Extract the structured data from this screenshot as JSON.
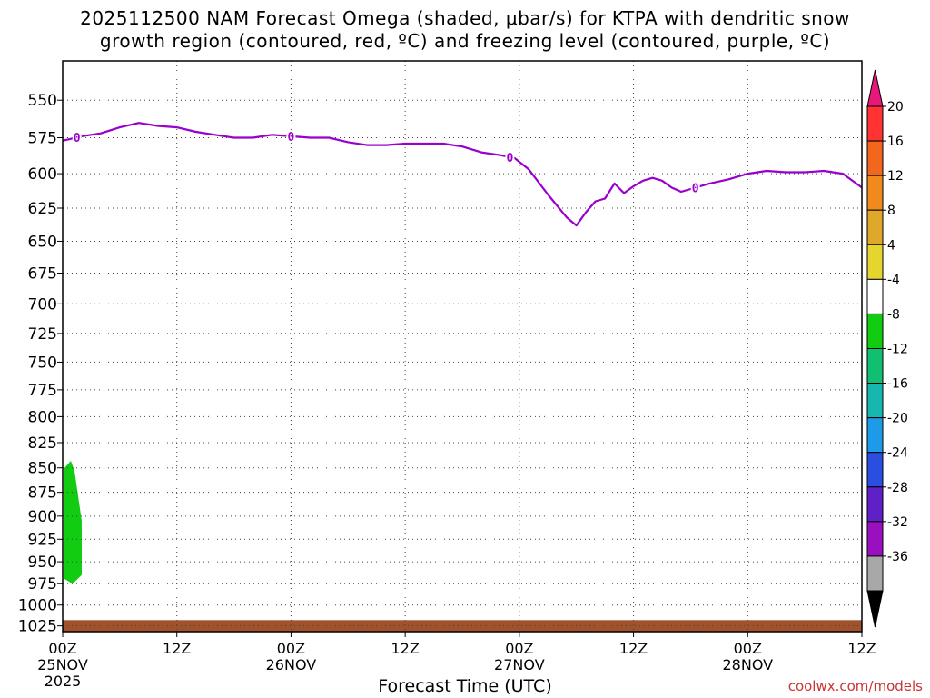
{
  "title": {
    "line1": "2025112500 NAM Forecast Omega (shaded, μbar/s) for KTPA with dendritic snow",
    "line2": "growth region (contoured, red, ºC) and freezing level (contoured, purple, ºC)"
  },
  "credit": "coolwx.com/models",
  "chart_data": {
    "type": "heatmap",
    "xlabel": "Forecast Time (UTC)",
    "x_ticks": [
      {
        "hour": 0,
        "label": "00Z",
        "sub": "25NOV",
        "sub2": "2025"
      },
      {
        "hour": 12,
        "label": "12Z"
      },
      {
        "hour": 24,
        "label": "00Z",
        "sub": "26NOV"
      },
      {
        "hour": 36,
        "label": "12Z"
      },
      {
        "hour": 48,
        "label": "00Z",
        "sub": "27NOV"
      },
      {
        "hour": 60,
        "label": "12Z"
      },
      {
        "hour": 72,
        "label": "00Z",
        "sub": "28NOV"
      },
      {
        "hour": 84,
        "label": "12Z"
      }
    ],
    "xlim": [
      0,
      84
    ],
    "ylabel": "",
    "y_ticks": [
      550,
      575,
      600,
      625,
      650,
      675,
      700,
      725,
      750,
      775,
      800,
      825,
      850,
      875,
      900,
      925,
      950,
      975,
      1000,
      1025
    ],
    "ylim": [
      1032,
      525
    ],
    "y_scale": "log-pressure",
    "grid": true,
    "colorbar": {
      "labels": [
        "20",
        "16",
        "12",
        "8",
        "4",
        "-4",
        "-8",
        "-12",
        "-16",
        "-20",
        "-24",
        "-28",
        "-32",
        "-36"
      ],
      "colors": [
        "#e8177a",
        "#ff3333",
        "#f2661e",
        "#f08a1c",
        "#e0a82b",
        "#e6d52e",
        "#ffffff",
        "#11cc11",
        "#10c070",
        "#17b7b0",
        "#1e9be8",
        "#2a4fe0",
        "#6020c8",
        "#9a10c0",
        "#a8a8a8",
        "#000000"
      ]
    },
    "freezing_level": {
      "color": "#9900cc",
      "contour_label": "0",
      "label_hours": [
        1.5,
        24,
        47,
        66.5
      ],
      "points": [
        [
          0,
          577
        ],
        [
          2,
          574
        ],
        [
          4,
          572
        ],
        [
          6,
          568
        ],
        [
          8,
          565
        ],
        [
          10,
          567
        ],
        [
          12,
          568
        ],
        [
          14,
          571
        ],
        [
          16,
          573
        ],
        [
          18,
          575
        ],
        [
          20,
          575
        ],
        [
          22,
          573
        ],
        [
          24,
          574
        ],
        [
          26,
          575
        ],
        [
          28,
          575
        ],
        [
          30,
          578
        ],
        [
          32,
          580
        ],
        [
          34,
          580
        ],
        [
          36,
          579
        ],
        [
          38,
          579
        ],
        [
          40,
          579
        ],
        [
          42,
          581
        ],
        [
          44,
          585
        ],
        [
          46,
          587
        ],
        [
          47.5,
          589
        ],
        [
          49,
          597
        ],
        [
          51,
          615
        ],
        [
          53,
          632
        ],
        [
          54,
          638
        ],
        [
          55,
          628
        ],
        [
          56,
          620
        ],
        [
          57,
          618
        ],
        [
          58,
          607
        ],
        [
          59,
          614
        ],
        [
          60,
          609
        ],
        [
          61,
          605
        ],
        [
          62,
          603
        ],
        [
          63,
          605
        ],
        [
          64,
          610
        ],
        [
          65,
          613
        ],
        [
          66,
          611
        ],
        [
          67,
          609
        ],
        [
          68,
          607
        ],
        [
          70,
          604
        ],
        [
          72,
          600
        ],
        [
          74,
          598
        ],
        [
          76,
          599
        ],
        [
          78,
          599
        ],
        [
          80,
          598
        ],
        [
          82,
          600
        ],
        [
          84,
          610
        ]
      ]
    },
    "shaded_regions": [
      {
        "category": "-4 to -8",
        "color": "#11cc11",
        "x_range": [
          0,
          2
        ],
        "pressure_range": [
          843,
          975
        ]
      }
    ],
    "ground_color": "#a0522d",
    "ground_pressure": 1018
  }
}
